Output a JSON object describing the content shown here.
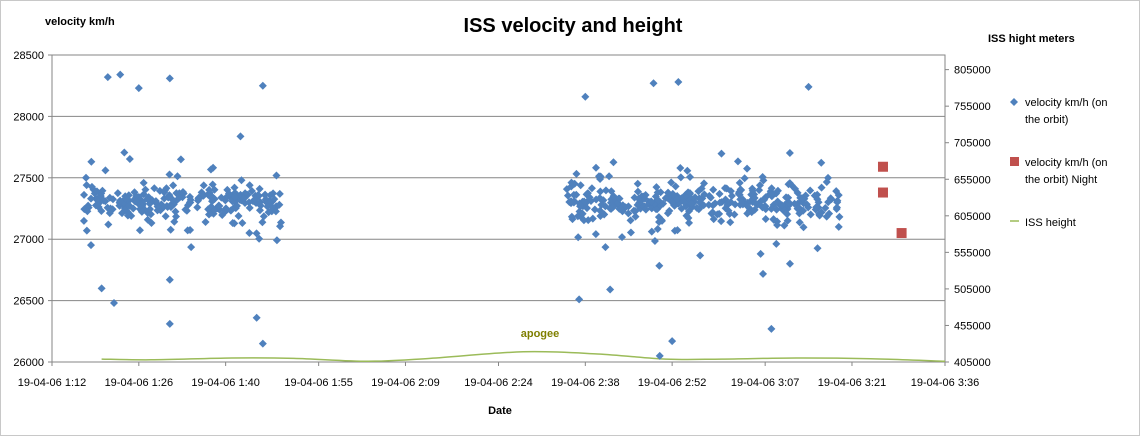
{
  "chart_data": {
    "type": "scatter",
    "title": "ISS velocity and height",
    "xlabel": "Date",
    "ylabel_left": "velocity km/h",
    "ylabel_right": "ISS hight meters",
    "ylim_left": [
      26000,
      28500
    ],
    "yticks_left": [
      "26000",
      "26500",
      "27000",
      "27500",
      "28000",
      "28500"
    ],
    "ylim_right": [
      405000,
      825000
    ],
    "yticks_right": [
      "405000",
      "455000",
      "505000",
      "555000",
      "605000",
      "655000",
      "705000",
      "755000",
      "805000"
    ],
    "xticks": [
      "19-04-06 1:12",
      "19-04-06 1:26",
      "19-04-06 1:40",
      "19-04-06 1:55",
      "19-04-06 2:09",
      "19-04-06 2:24",
      "19-04-06 2:38",
      "19-04-06 2:52",
      "19-04-06 3:07",
      "19-04-06 3:21",
      "19-04-06 3:36"
    ],
    "grid": true,
    "legend_position": "right",
    "annotation": "apogee",
    "series": [
      {
        "name": "velocity km/h (on the orbit)",
        "kind": "scatter",
        "marker": "diamond",
        "color": "#4f81bd",
        "bursts": [
          {
            "start": "19-04-06 1:17",
            "end": "19-04-06 1:49",
            "count": 260
          },
          {
            "start": "19-04-06 2:35",
            "end": "19-04-06 3:19",
            "count": 360
          }
        ],
        "points": [
          {
            "time": "19-04-06 1:21",
            "value": 28320
          },
          {
            "time": "19-04-06 1:23",
            "value": 28340
          },
          {
            "time": "19-04-06 1:26",
            "value": 28230
          },
          {
            "time": "19-04-06 1:31",
            "value": 28310
          },
          {
            "time": "19-04-06 1:20",
            "value": 26600
          },
          {
            "time": "19-04-06 1:22",
            "value": 26480
          },
          {
            "time": "19-04-06 1:31",
            "value": 26670
          },
          {
            "time": "19-04-06 1:31",
            "value": 26310
          },
          {
            "time": "19-04-06 1:46",
            "value": 28250
          },
          {
            "time": "19-04-06 1:46",
            "value": 26150
          },
          {
            "time": "19-04-06 1:45",
            "value": 26360
          },
          {
            "time": "19-04-06 2:37",
            "value": 26510
          },
          {
            "time": "19-04-06 2:38",
            "value": 28160
          },
          {
            "time": "19-04-06 2:42",
            "value": 26590
          },
          {
            "time": "19-04-06 2:49",
            "value": 28270
          },
          {
            "time": "19-04-06 2:53",
            "value": 28280
          },
          {
            "time": "19-04-06 2:50",
            "value": 26050
          },
          {
            "time": "19-04-06 2:52",
            "value": 26170
          },
          {
            "time": "19-04-06 3:14",
            "value": 28240
          },
          {
            "time": "19-04-06 3:08",
            "value": 26270
          },
          {
            "time": "19-04-06 3:11",
            "value": 26800
          }
        ]
      },
      {
        "name": "velocity km/h (on the orbit) Night",
        "kind": "scatter",
        "marker": "square",
        "color": "#c0504d",
        "points": [
          {
            "time": "19-04-06 3:26",
            "value": 27590
          },
          {
            "time": "19-04-06 3:26",
            "value": 27380
          },
          {
            "time": "19-04-06 3:29",
            "value": 27050
          }
        ]
      },
      {
        "name": "ISS height",
        "kind": "line",
        "axis": "right",
        "color": "#9bbb59",
        "points": [
          {
            "time": "19-04-06 1:20",
            "value": 409000
          },
          {
            "time": "19-04-06 1:28",
            "value": 408000
          },
          {
            "time": "19-04-06 1:41",
            "value": 410500
          },
          {
            "time": "19-04-06 1:51",
            "value": 410000
          },
          {
            "time": "19-04-06 2:03",
            "value": 406000
          },
          {
            "time": "19-04-06 2:13",
            "value": 410000
          },
          {
            "time": "19-04-06 2:28",
            "value": 419000
          },
          {
            "time": "19-04-06 2:40",
            "value": 416000
          },
          {
            "time": "19-04-06 2:51",
            "value": 409000
          },
          {
            "time": "19-04-06 3:00",
            "value": 409000
          },
          {
            "time": "19-04-06 3:12",
            "value": 410500
          },
          {
            "time": "19-04-06 3:24",
            "value": 409500
          },
          {
            "time": "19-04-06 3:36",
            "value": 406000
          }
        ]
      }
    ]
  }
}
